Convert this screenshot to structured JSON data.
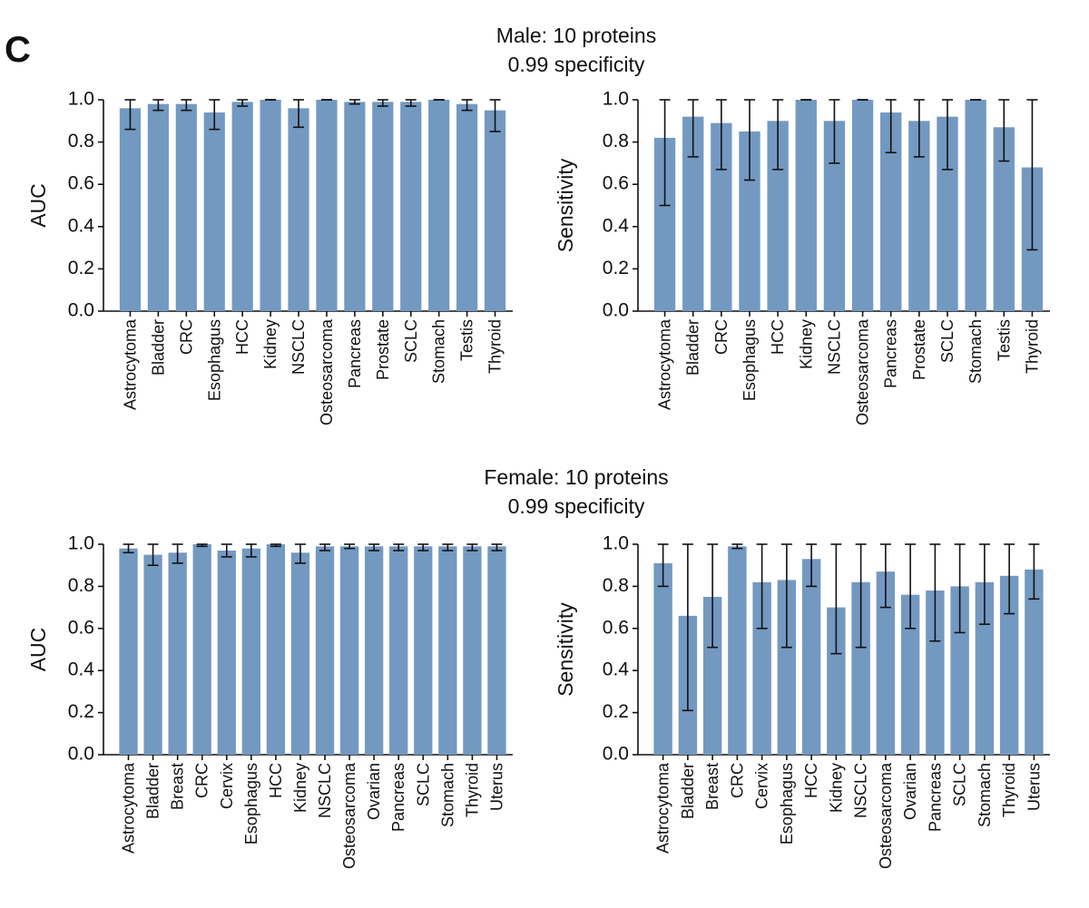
{
  "panel_label": "C",
  "sections": [
    {
      "title_line1": "Male: 10 proteins",
      "title_line2": "0.99 specificity"
    },
    {
      "title_line1": "Female: 10 proteins",
      "title_line2": "0.99 specificity"
    }
  ],
  "colors": {
    "bar": "#7399c1",
    "axis": "#111111"
  },
  "chart_data": [
    {
      "id": "male-auc",
      "type": "bar",
      "title": "Male: 10 proteins 0.99 specificity",
      "xlabel": "",
      "ylabel": "AUC",
      "ylim": [
        0,
        1.0
      ],
      "yticks": [
        "0.0",
        "0.2",
        "0.4",
        "0.6",
        "0.8",
        "1.0"
      ],
      "categories": [
        "Astrocytoma",
        "Bladder",
        "CRC",
        "Esophagus",
        "HCC",
        "Kidney",
        "NSCLC",
        "Osteosarcoma",
        "Pancreas",
        "Prostate",
        "SCLC",
        "Stomach",
        "Testis",
        "Thyroid"
      ],
      "values": [
        0.96,
        0.98,
        0.98,
        0.94,
        0.99,
        1.0,
        0.96,
        1.0,
        0.99,
        0.99,
        0.99,
        1.0,
        0.98,
        0.95
      ],
      "error_low": [
        0.86,
        0.95,
        0.95,
        0.86,
        0.97,
        1.0,
        0.87,
        1.0,
        0.98,
        0.97,
        0.97,
        1.0,
        0.95,
        0.85
      ],
      "error_high": [
        1.0,
        1.0,
        1.0,
        1.0,
        1.0,
        1.0,
        1.0,
        1.0,
        1.0,
        1.0,
        1.0,
        1.0,
        1.0,
        1.0
      ]
    },
    {
      "id": "male-sensitivity",
      "type": "bar",
      "title": "Male: 10 proteins 0.99 specificity",
      "xlabel": "",
      "ylabel": "Sensitivity",
      "ylim": [
        0,
        1.0
      ],
      "yticks": [
        "0.0",
        "0.2",
        "0.4",
        "0.6",
        "0.8",
        "1.0"
      ],
      "categories": [
        "Astrocytoma",
        "Bladder",
        "CRC",
        "Esophagus",
        "HCC",
        "Kidney",
        "NSCLC",
        "Osteosarcoma",
        "Pancreas",
        "Prostate",
        "SCLC",
        "Stomach",
        "Testis",
        "Thyroid"
      ],
      "values": [
        0.82,
        0.92,
        0.89,
        0.85,
        0.9,
        1.0,
        0.9,
        1.0,
        0.94,
        0.9,
        0.92,
        1.0,
        0.87,
        0.68
      ],
      "error_low": [
        0.5,
        0.73,
        0.67,
        0.62,
        0.67,
        1.0,
        0.7,
        1.0,
        0.75,
        0.73,
        0.67,
        1.0,
        0.71,
        0.29
      ],
      "error_high": [
        1.0,
        1.0,
        1.0,
        1.0,
        1.0,
        1.0,
        1.0,
        1.0,
        1.0,
        1.0,
        1.0,
        1.0,
        1.0,
        1.0
      ]
    },
    {
      "id": "female-auc",
      "type": "bar",
      "title": "Female: 10 proteins 0.99 specificity",
      "xlabel": "",
      "ylabel": "AUC",
      "ylim": [
        0,
        1.0
      ],
      "yticks": [
        "0.0",
        "0.2",
        "0.4",
        "0.6",
        "0.8",
        "1.0"
      ],
      "categories": [
        "Astrocytoma",
        "Bladder",
        "Breast",
        "CRC",
        "Cervix",
        "Esophagus",
        "HCC",
        "Kidney",
        "NSCLC",
        "Osteosarcoma",
        "Ovarian",
        "Pancreas",
        "SCLC",
        "Stomach",
        "Thyroid",
        "Uterus"
      ],
      "values": [
        0.98,
        0.95,
        0.96,
        1.0,
        0.97,
        0.98,
        1.0,
        0.96,
        0.99,
        0.99,
        0.99,
        0.99,
        0.99,
        0.99,
        0.99,
        0.99
      ],
      "error_low": [
        0.96,
        0.9,
        0.91,
        0.99,
        0.94,
        0.94,
        0.99,
        0.91,
        0.97,
        0.98,
        0.97,
        0.97,
        0.97,
        0.97,
        0.97,
        0.97
      ],
      "error_high": [
        1.0,
        1.0,
        1.0,
        1.0,
        1.0,
        1.0,
        1.0,
        1.0,
        1.0,
        1.0,
        1.0,
        1.0,
        1.0,
        1.0,
        1.0,
        1.0
      ]
    },
    {
      "id": "female-sensitivity",
      "type": "bar",
      "title": "Female: 10 proteins 0.99 specificity",
      "xlabel": "",
      "ylabel": "Sensitivity",
      "ylim": [
        0,
        1.0
      ],
      "yticks": [
        "0.0",
        "0.2",
        "0.4",
        "0.6",
        "0.8",
        "1.0"
      ],
      "categories": [
        "Astrocytoma",
        "Bladder",
        "Breast",
        "CRC",
        "Cervix",
        "Esophagus",
        "HCC",
        "Kidney",
        "NSCLC",
        "Osteosarcoma",
        "Ovarian",
        "Pancreas",
        "SCLC",
        "Stomach",
        "Thyroid",
        "Uterus"
      ],
      "values": [
        0.91,
        0.66,
        0.75,
        0.99,
        0.82,
        0.83,
        0.93,
        0.7,
        0.82,
        0.87,
        0.76,
        0.78,
        0.8,
        0.82,
        0.85,
        0.88
      ],
      "error_low": [
        0.8,
        0.21,
        0.51,
        0.98,
        0.6,
        0.51,
        0.8,
        0.48,
        0.51,
        0.7,
        0.6,
        0.54,
        0.58,
        0.62,
        0.67,
        0.74
      ],
      "error_high": [
        1.0,
        1.0,
        1.0,
        1.0,
        1.0,
        1.0,
        1.0,
        1.0,
        1.0,
        1.0,
        1.0,
        1.0,
        1.0,
        1.0,
        1.0,
        1.0
      ]
    }
  ]
}
